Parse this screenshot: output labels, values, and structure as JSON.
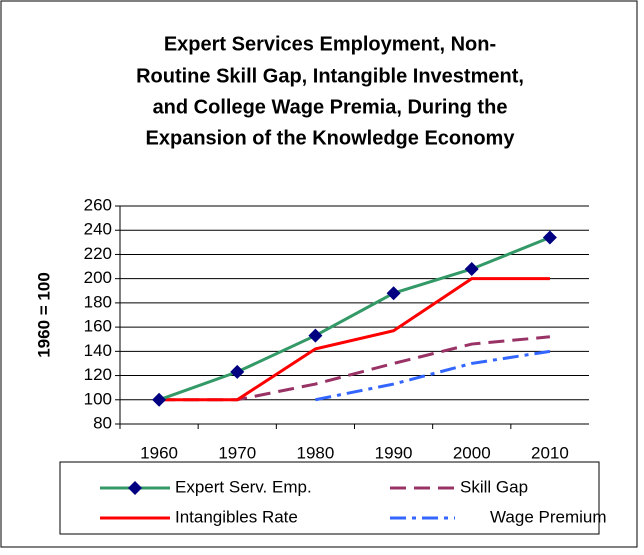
{
  "chart_data": {
    "type": "line",
    "title": [
      "Expert Services Employment, Non-",
      "Routine Skill Gap, Intangible Investment,",
      "and College Wage Premia, During the",
      "Expansion of the Knowledge Economy"
    ],
    "y_label": "1960 = 100",
    "categories": [
      "1960",
      "1970",
      "1980",
      "1990",
      "2000",
      "2010"
    ],
    "series": [
      {
        "name": "Expert Serv. Emp.",
        "color": "#339966",
        "marker": "diamond",
        "marker_color": "#000080",
        "dash": "solid",
        "values": [
          100,
          123,
          153,
          188,
          208,
          234
        ]
      },
      {
        "name": "Skill Gap",
        "color": "#993366",
        "dash": "dash",
        "values": [
          100,
          100,
          113,
          130,
          146,
          152
        ]
      },
      {
        "name": "Intangibles Rate",
        "color": "#ff0000",
        "dash": "solid",
        "values": [
          100,
          100,
          142,
          157,
          200,
          200
        ]
      },
      {
        "name": "Wage Premium",
        "color": "#3366ff",
        "dash": "dashdot",
        "values": [
          null,
          null,
          100,
          113,
          130,
          140
        ]
      }
    ],
    "ylim": [
      80,
      260
    ],
    "yticks": [
      80,
      100,
      120,
      140,
      160,
      180,
      200,
      220,
      240,
      260
    ],
    "grid": true
  }
}
